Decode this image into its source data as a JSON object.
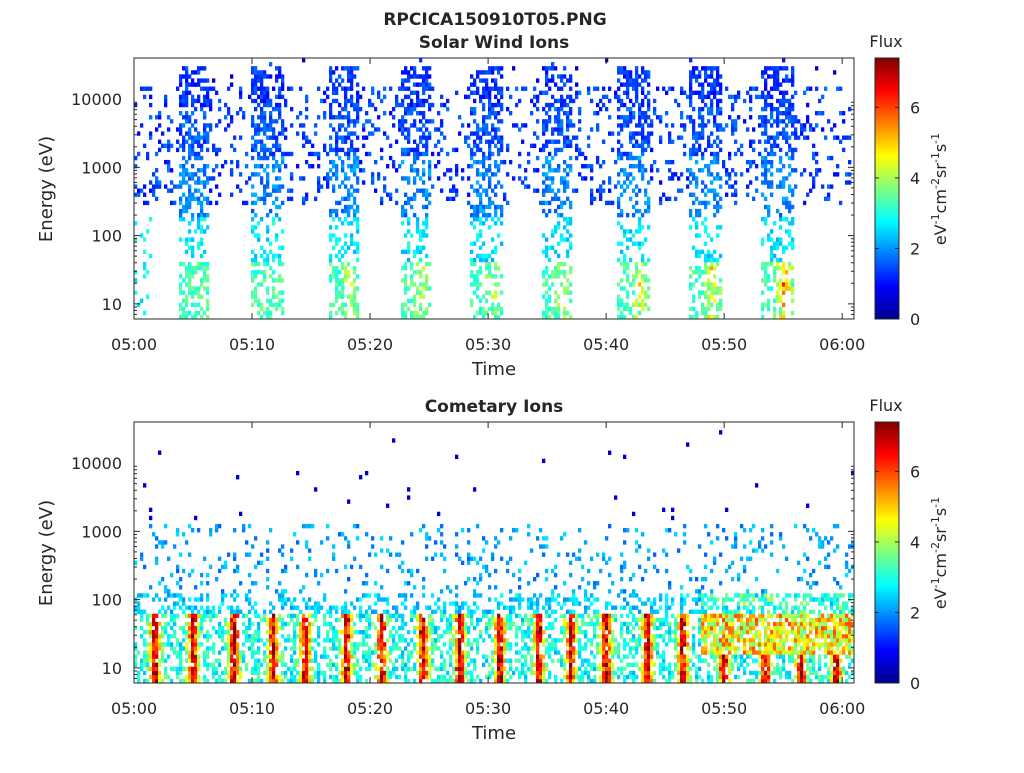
{
  "figure": {
    "filename_title": "RPCICA150910T05.PNG"
  },
  "colorbar": {
    "label": "Flux",
    "unit_parts": {
      "base": "eV",
      "e1": "-1",
      "cm": "cm",
      "e2": "-2",
      "sr": "sr",
      "e3": "-1",
      "s": "s",
      "e4": "-1"
    },
    "ticks": [
      "0",
      "2",
      "4",
      "6"
    ],
    "range": [
      0,
      7.4
    ]
  },
  "chart_data": [
    {
      "type": "heatmap",
      "title": "Solar Wind Ions",
      "xlabel": "Time",
      "ylabel": "Energy (eV)",
      "x_ticks": [
        "05:00",
        "05:10",
        "05:20",
        "05:30",
        "05:40",
        "05:50",
        "06:00"
      ],
      "y_ticks": [
        "10",
        "100",
        "1000",
        "10000"
      ],
      "y_scale": "log",
      "xlim_minutes": [
        0,
        61
      ],
      "ylim": [
        6,
        40000
      ],
      "bursts_start_minute": [
        3.7,
        9.9,
        16.4,
        22.5,
        28.5,
        34.5,
        41.0,
        47.1,
        53.2
      ],
      "burst_low_energy_peak_flux": [
        3.4,
        3.5,
        4.5,
        4.4,
        4.3,
        4.6,
        5.0,
        5.1,
        6.2
      ],
      "colorbar_range": [
        0,
        7.4
      ]
    },
    {
      "type": "heatmap",
      "title": "Cometary Ions",
      "xlabel": "Time",
      "ylabel": "Energy (eV)",
      "x_ticks": [
        "05:00",
        "05:10",
        "05:20",
        "05:30",
        "05:40",
        "05:50",
        "06:00"
      ],
      "y_ticks": [
        "10",
        "100",
        "1000",
        "10000"
      ],
      "y_scale": "log",
      "xlim_minutes": [
        0,
        61
      ],
      "ylim": [
        6,
        40000
      ],
      "hot_columns_minute": [
        1.8,
        5.0,
        8.5,
        11.8,
        14.5,
        18.0,
        21.0,
        24.5,
        27.6,
        31.0,
        34.3,
        37.0,
        40.0,
        43.5,
        46.5,
        50.0,
        53.5,
        56.5,
        59.5
      ],
      "colorbar_range": [
        0,
        7.4
      ]
    }
  ]
}
